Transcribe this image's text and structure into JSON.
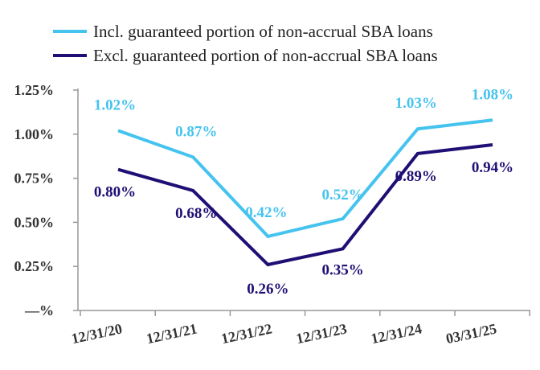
{
  "colors": {
    "incl": "#45c3ef",
    "excl": "#1f0f75",
    "axis": "#999999"
  },
  "chart_data": {
    "type": "line",
    "categories": [
      "12/31/20",
      "12/31/21",
      "12/31/22",
      "12/31/23",
      "12/31/24",
      "03/31/25"
    ],
    "series": [
      {
        "name": "Incl. guaranteed portion of non-accrual SBA loans",
        "values": [
          1.02,
          0.87,
          0.42,
          0.52,
          1.03,
          1.08
        ],
        "labels": [
          "1.02%",
          "0.87%",
          "0.42%",
          "0.52%",
          "1.03%",
          "1.08%"
        ]
      },
      {
        "name": "Excl. guaranteed portion of non-accrual SBA loans",
        "values": [
          0.8,
          0.68,
          0.26,
          0.35,
          0.89,
          0.94
        ],
        "labels": [
          "0.80%",
          "0.68%",
          "0.26%",
          "0.35%",
          "0.89%",
          "0.94%"
        ]
      }
    ],
    "yticks": [
      0,
      0.25,
      0.5,
      0.75,
      1.0,
      1.25
    ],
    "ytick_labels": [
      "—%",
      "0.25%",
      "0.50%",
      "0.75%",
      "1.00%",
      "1.25%"
    ],
    "ylim": [
      0,
      1.25
    ],
    "grid": false,
    "legend": "top"
  }
}
